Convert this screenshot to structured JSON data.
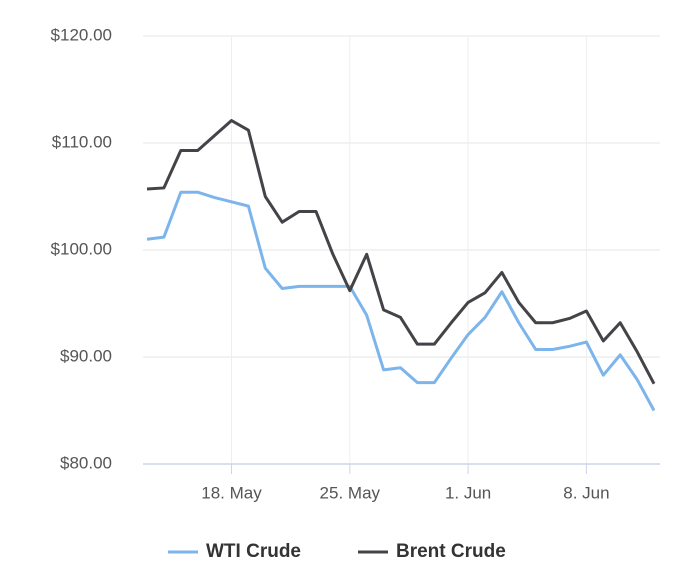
{
  "chart_data": {
    "type": "line",
    "x": [
      "13. May",
      "14. May",
      "15. May",
      "16. May",
      "17. May",
      "18. May",
      "19. May",
      "20. May",
      "21. May",
      "22. May",
      "23. May",
      "24. May",
      "25. May",
      "26. May",
      "27. May",
      "28. May",
      "29. May",
      "30. May",
      "31. May",
      "1. Jun",
      "2. Jun",
      "3. Jun",
      "4. Jun",
      "5. Jun",
      "6. Jun",
      "7. Jun",
      "8. Jun",
      "9. Jun",
      "10. Jun",
      "11. Jun",
      "12. Jun"
    ],
    "series": [
      {
        "name": "WTI Crude",
        "color": "#7cb5ec",
        "values": [
          101.0,
          101.2,
          105.4,
          105.4,
          104.9,
          104.5,
          104.1,
          98.3,
          96.4,
          96.6,
          96.6,
          96.6,
          96.6,
          93.9,
          88.8,
          89.0,
          87.6,
          87.6,
          89.9,
          92.1,
          93.7,
          96.1,
          93.2,
          90.7,
          90.7,
          91.0,
          91.4,
          88.3,
          90.2,
          87.9,
          85.0
        ]
      },
      {
        "name": "Brent Crude",
        "color": "#434348",
        "values": [
          105.7,
          105.8,
          109.3,
          109.3,
          110.7,
          112.1,
          111.2,
          105.0,
          102.6,
          103.6,
          103.6,
          99.6,
          96.2,
          99.6,
          94.4,
          93.7,
          91.2,
          91.2,
          93.2,
          95.1,
          96.0,
          97.9,
          95.1,
          93.2,
          93.2,
          93.6,
          94.3,
          91.5,
          93.2,
          90.5,
          87.5
        ]
      }
    ],
    "xticks": [
      "18. May",
      "25. May",
      "1. Jun",
      "8. Jun"
    ],
    "ylim": [
      80,
      120
    ],
    "yticks": [
      {
        "value": 80,
        "label": "$80.00"
      },
      {
        "value": 90,
        "label": "$90.00"
      },
      {
        "value": 100,
        "label": "$100.00"
      },
      {
        "value": 110,
        "label": "$110.00"
      },
      {
        "value": 120,
        "label": "$120.00"
      }
    ],
    "grid": true,
    "legend": "bottom"
  }
}
